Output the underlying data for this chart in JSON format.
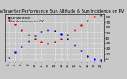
{
  "title": "Solar PV/Inverter Performance Sun Altitude & Sun Incidence on PV",
  "bg_color": "#c8c8c8",
  "plot_bg": "#c8c8c8",
  "grid_color": "#ffffff",
  "blue_color": "#0000dd",
  "red_color": "#dd0000",
  "xlim": [
    5.5,
    20.5
  ],
  "ylim": [
    -5,
    85
  ],
  "yticks": [
    0,
    10,
    20,
    30,
    40,
    50,
    60,
    70,
    80
  ],
  "xtick_labels": [
    "6",
    "7",
    "8",
    "9",
    "10",
    "11",
    "12",
    "13",
    "14",
    "15",
    "16",
    "17",
    "18",
    "19",
    "20"
  ],
  "xtick_vals": [
    6,
    7,
    8,
    9,
    10,
    11,
    12,
    13,
    14,
    15,
    16,
    17,
    18,
    19,
    20
  ],
  "sun_altitude_x": [
    6,
    7,
    8,
    9,
    10,
    11,
    12,
    13,
    14,
    15,
    16,
    17,
    18,
    19,
    20
  ],
  "sun_altitude_y": [
    2,
    13,
    24,
    34,
    44,
    52,
    55,
    53,
    47,
    38,
    27,
    16,
    6,
    0,
    -2
  ],
  "sun_incidence_x": [
    6,
    7,
    8,
    9,
    10,
    11,
    12,
    13,
    14,
    15,
    16,
    17,
    18,
    19,
    20
  ],
  "sun_incidence_y": [
    78,
    66,
    55,
    46,
    38,
    32,
    30,
    32,
    38,
    46,
    55,
    64,
    73,
    80,
    84
  ],
  "legend_altitude": "Sun Altitude",
  "legend_incidence": "Sun Incidence on PV",
  "title_fontsize": 3.8,
  "tick_fontsize": 3.0,
  "legend_fontsize": 3.0
}
